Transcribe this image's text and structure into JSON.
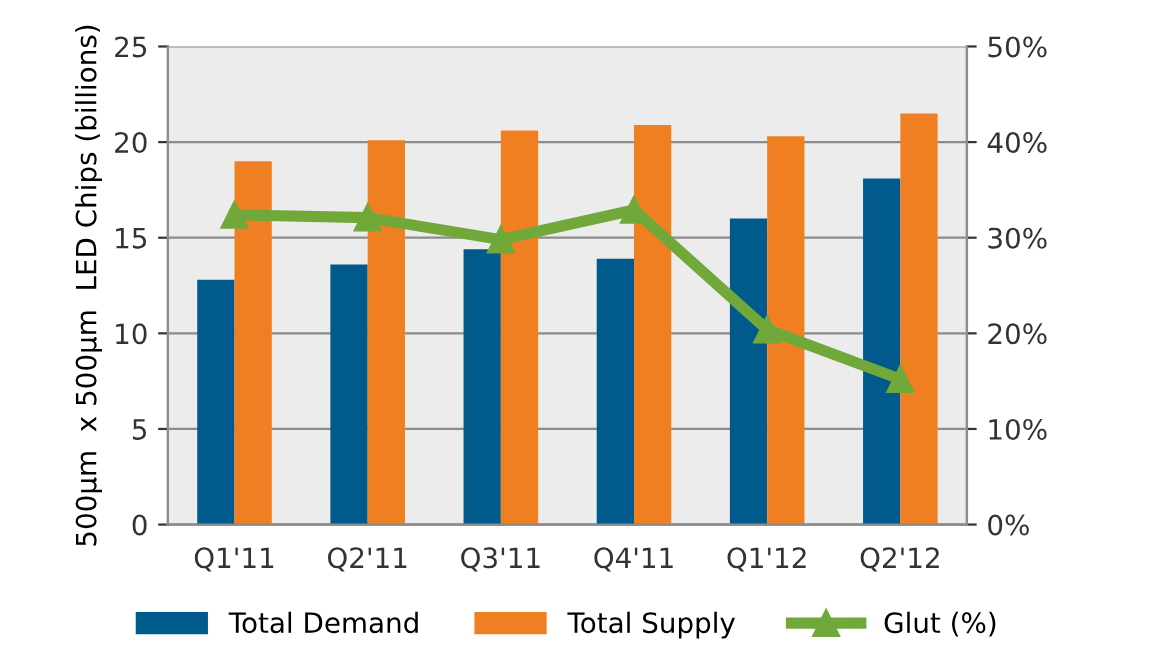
{
  "chart_data": {
    "type": "bar",
    "ylabel": "500µm  x 500µm  LED Chips (billions)",
    "categories": [
      "Q1'11",
      "Q2'11",
      "Q3'11",
      "Q4'11",
      "Q1'12",
      "Q2'12"
    ],
    "series": [
      {
        "name": "Total Demand",
        "color": "#005b8c",
        "values": [
          12.8,
          13.6,
          14.4,
          13.9,
          16.0,
          18.1
        ]
      },
      {
        "name": "Total Supply",
        "color": "#f07f22",
        "values": [
          19.0,
          20.1,
          20.6,
          20.9,
          20.3,
          21.5
        ]
      },
      {
        "name": "Glut (%)",
        "type": "line",
        "axis": "y2",
        "color": "#70a83a",
        "marker": "triangle",
        "values": [
          32.4,
          32.1,
          29.8,
          32.9,
          20.4,
          15.2
        ]
      }
    ],
    "ylim": [
      0,
      25
    ],
    "yticks": [
      0,
      5,
      10,
      15,
      20,
      25
    ],
    "y2lim": [
      0,
      50
    ],
    "y2ticks": [
      {
        "value": 0,
        "label": "0%"
      },
      {
        "value": 10,
        "label": "10%"
      },
      {
        "value": 20,
        "label": "20%"
      },
      {
        "value": 30,
        "label": "30%"
      },
      {
        "value": 40,
        "label": "40%"
      },
      {
        "value": 50,
        "label": "50%"
      }
    ],
    "grid": "y",
    "legend": "bottom"
  }
}
